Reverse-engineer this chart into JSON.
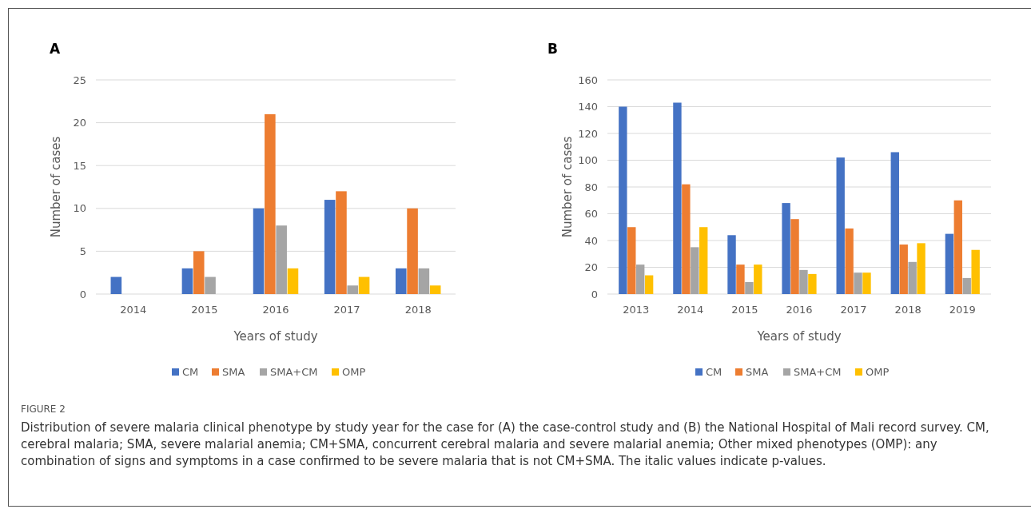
{
  "chart_data": [
    {
      "type": "bar",
      "title": "A",
      "xlabel": "Years of study",
      "ylabel": "Number of cases",
      "categories": [
        "2014",
        "2015",
        "2016",
        "2017",
        "2018"
      ],
      "series": [
        {
          "name": "CM",
          "color": "#4472c4",
          "values": [
            2,
            3,
            10,
            11,
            3
          ]
        },
        {
          "name": "SMA",
          "color": "#ed7d31",
          "values": [
            0,
            5,
            21,
            12,
            10
          ]
        },
        {
          "name": "SMA+CM",
          "color": "#a5a5a5",
          "values": [
            0,
            2,
            8,
            1,
            3
          ]
        },
        {
          "name": "OMP",
          "color": "#ffc000",
          "values": [
            0,
            0,
            3,
            2,
            1
          ]
        }
      ],
      "ylim": [
        0,
        25
      ],
      "yticks": [
        0,
        5,
        10,
        15,
        20,
        25
      ],
      "grid": "y",
      "legend": "bottom",
      "annotations": [
        "FIGURE 2",
        "Distribution of severe malaria clinical phenotype by study year for the case for (A) the case-control study and (B) the National Hospital of Mali record survey. CM, cerebral malaria; SMA, severe malarial anemia; CM+SMA, concurrent cerebral malaria and severe malarial anemia; Other mixed phenotypes (OMP): any combination of signs and symptoms in a case confirmed to be severe malaria that is not CM+SMA. The italic values indicate p-values."
      ]
    },
    {
      "type": "bar",
      "title": "B",
      "xlabel": "Years of study",
      "ylabel": "Number of cases",
      "categories": [
        "2013",
        "2014",
        "2015",
        "2016",
        "2017",
        "2018",
        "2019"
      ],
      "series": [
        {
          "name": "CM",
          "color": "#4472c4",
          "values": [
            140,
            143,
            44,
            68,
            102,
            106,
            45
          ]
        },
        {
          "name": "SMA",
          "color": "#ed7d31",
          "values": [
            50,
            82,
            22,
            56,
            49,
            37,
            70
          ]
        },
        {
          "name": "SMA+CM",
          "color": "#a5a5a5",
          "values": [
            22,
            35,
            9,
            18,
            16,
            24,
            12
          ]
        },
        {
          "name": "OMP",
          "color": "#ffc000",
          "values": [
            14,
            50,
            22,
            15,
            16,
            38,
            33
          ]
        }
      ],
      "ylim": [
        0,
        160
      ],
      "yticks": [
        0,
        20,
        40,
        60,
        80,
        100,
        120,
        140,
        160
      ],
      "grid": "y",
      "legend": "bottom"
    }
  ]
}
